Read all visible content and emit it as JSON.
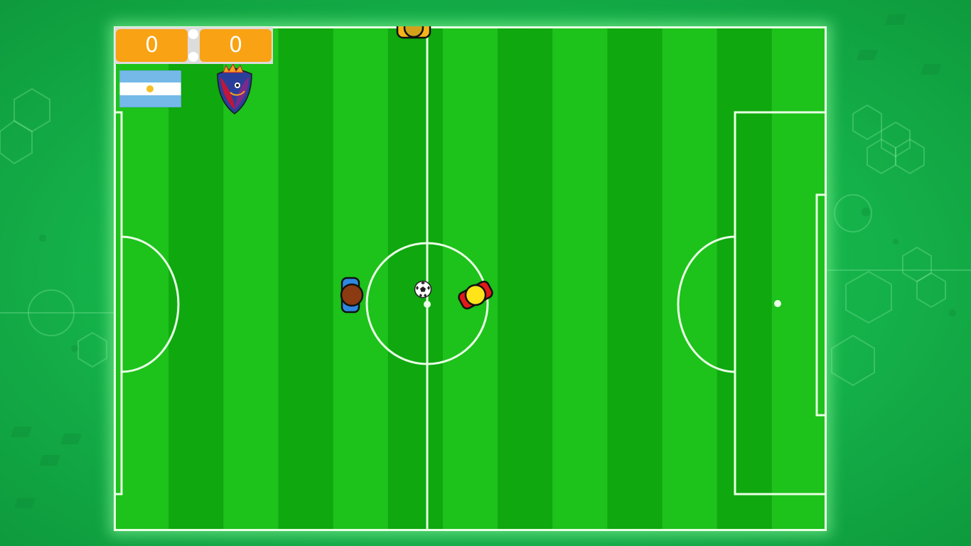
{
  "scoreboard": {
    "home_score": "0",
    "away_score": "0"
  },
  "teams": {
    "home": {
      "name_icon": "argentina-flag-icon",
      "colors": [
        "#74b9e8",
        "#ffffff",
        "#f6c026"
      ]
    },
    "away": {
      "name_icon": "dragon-crest-icon",
      "colors": [
        "#c0163a",
        "#2a3f9a",
        "#f5a21e"
      ]
    }
  },
  "colors": {
    "score_bg": "#f9a213",
    "pitch_light": "#1dc21a",
    "pitch_dark": "#0fa80f",
    "line": "#e9ffe6",
    "home_player_shirt": "#2f88e0",
    "home_player_head": "#8b3a12",
    "away_player_shirt": "#e21a1a",
    "away_player_head": "#ffe41a"
  }
}
